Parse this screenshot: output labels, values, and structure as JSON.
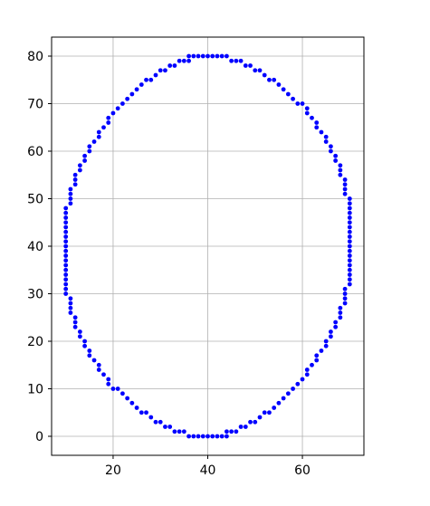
{
  "chart_data": {
    "type": "scatter",
    "title": "",
    "xlabel": "",
    "ylabel": "",
    "xlim": [
      7.0,
      73.0
    ],
    "ylim": [
      -4.0,
      84.0
    ],
    "xticks": [
      20,
      40,
      60
    ],
    "yticks": [
      0,
      10,
      20,
      30,
      40,
      50,
      60,
      70,
      80
    ],
    "grid": true,
    "marker_color": "#0000ff",
    "series": [
      {
        "points": [
          [
            36,
            80
          ],
          [
            37,
            80
          ],
          [
            38,
            80
          ],
          [
            39,
            80
          ],
          [
            40,
            80
          ],
          [
            41,
            80
          ],
          [
            42,
            80
          ],
          [
            43,
            80
          ],
          [
            44,
            80
          ],
          [
            45,
            79
          ],
          [
            46,
            79
          ],
          [
            47,
            79
          ],
          [
            48,
            78
          ],
          [
            49,
            78
          ],
          [
            50,
            77
          ],
          [
            51,
            77
          ],
          [
            52,
            76
          ],
          [
            53,
            75
          ],
          [
            54,
            75
          ],
          [
            55,
            74
          ],
          [
            56,
            73
          ],
          [
            57,
            72
          ],
          [
            58,
            71
          ],
          [
            59,
            70
          ],
          [
            60,
            70
          ],
          [
            61,
            69
          ],
          [
            61,
            68
          ],
          [
            62,
            67
          ],
          [
            63,
            66
          ],
          [
            63,
            65
          ],
          [
            64,
            64
          ],
          [
            65,
            63
          ],
          [
            65,
            62
          ],
          [
            66,
            61
          ],
          [
            66,
            60
          ],
          [
            67,
            59
          ],
          [
            67,
            58
          ],
          [
            68,
            57
          ],
          [
            68,
            56
          ],
          [
            68,
            55
          ],
          [
            69,
            54
          ],
          [
            69,
            53
          ],
          [
            69,
            52
          ],
          [
            69,
            51
          ],
          [
            70,
            50
          ],
          [
            70,
            49
          ],
          [
            70,
            48
          ],
          [
            70,
            47
          ],
          [
            70,
            46
          ],
          [
            70,
            45
          ],
          [
            70,
            44
          ],
          [
            70,
            43
          ],
          [
            70,
            42
          ],
          [
            70,
            41
          ],
          [
            70,
            40
          ],
          [
            70,
            39
          ],
          [
            70,
            38
          ],
          [
            70,
            37
          ],
          [
            70,
            36
          ],
          [
            70,
            35
          ],
          [
            70,
            34
          ],
          [
            70,
            33
          ],
          [
            70,
            32
          ],
          [
            69,
            31
          ],
          [
            69,
            30
          ],
          [
            69,
            29
          ],
          [
            69,
            28
          ],
          [
            68,
            27
          ],
          [
            68,
            26
          ],
          [
            68,
            25
          ],
          [
            67,
            24
          ],
          [
            67,
            23
          ],
          [
            66,
            22
          ],
          [
            66,
            21
          ],
          [
            65,
            20
          ],
          [
            65,
            19
          ],
          [
            64,
            18
          ],
          [
            63,
            17
          ],
          [
            63,
            16
          ],
          [
            62,
            15
          ],
          [
            61,
            14
          ],
          [
            61,
            13
          ],
          [
            60,
            12
          ],
          [
            59,
            11
          ],
          [
            58,
            10
          ],
          [
            57,
            9
          ],
          [
            56,
            8
          ],
          [
            55,
            7
          ],
          [
            54,
            6
          ],
          [
            53,
            5
          ],
          [
            52,
            5
          ],
          [
            51,
            4
          ],
          [
            50,
            3
          ],
          [
            49,
            3
          ],
          [
            48,
            2
          ],
          [
            47,
            2
          ],
          [
            46,
            1
          ],
          [
            45,
            1
          ],
          [
            44,
            1
          ],
          [
            44,
            0
          ],
          [
            43,
            0
          ],
          [
            42,
            0
          ],
          [
            41,
            0
          ],
          [
            40,
            0
          ],
          [
            39,
            0
          ],
          [
            38,
            0
          ],
          [
            37,
            0
          ],
          [
            36,
            0
          ],
          [
            35,
            1
          ],
          [
            34,
            1
          ],
          [
            33,
            1
          ],
          [
            32,
            2
          ],
          [
            31,
            2
          ],
          [
            30,
            3
          ],
          [
            29,
            3
          ],
          [
            28,
            4
          ],
          [
            27,
            5
          ],
          [
            26,
            5
          ],
          [
            25,
            6
          ],
          [
            24,
            7
          ],
          [
            23,
            8
          ],
          [
            22,
            9
          ],
          [
            21,
            10
          ],
          [
            20,
            10
          ],
          [
            19,
            11
          ],
          [
            19,
            12
          ],
          [
            18,
            13
          ],
          [
            17,
            14
          ],
          [
            17,
            15
          ],
          [
            16,
            16
          ],
          [
            15,
            17
          ],
          [
            15,
            18
          ],
          [
            14,
            19
          ],
          [
            14,
            20
          ],
          [
            13,
            21
          ],
          [
            13,
            22
          ],
          [
            12,
            23
          ],
          [
            12,
            24
          ],
          [
            12,
            25
          ],
          [
            11,
            26
          ],
          [
            11,
            27
          ],
          [
            11,
            28
          ],
          [
            11,
            29
          ],
          [
            10,
            30
          ],
          [
            10,
            31
          ],
          [
            10,
            32
          ],
          [
            10,
            33
          ],
          [
            10,
            34
          ],
          [
            10,
            35
          ],
          [
            10,
            36
          ],
          [
            10,
            37
          ],
          [
            10,
            38
          ],
          [
            10,
            39
          ],
          [
            10,
            40
          ],
          [
            10,
            41
          ],
          [
            10,
            42
          ],
          [
            10,
            43
          ],
          [
            10,
            44
          ],
          [
            10,
            45
          ],
          [
            10,
            46
          ],
          [
            10,
            47
          ],
          [
            10,
            48
          ],
          [
            11,
            49
          ],
          [
            11,
            50
          ],
          [
            11,
            51
          ],
          [
            11,
            52
          ],
          [
            12,
            53
          ],
          [
            12,
            54
          ],
          [
            12,
            55
          ],
          [
            13,
            56
          ],
          [
            13,
            57
          ],
          [
            14,
            58
          ],
          [
            14,
            59
          ],
          [
            15,
            60
          ],
          [
            15,
            61
          ],
          [
            16,
            62
          ],
          [
            17,
            63
          ],
          [
            17,
            64
          ],
          [
            18,
            65
          ],
          [
            19,
            66
          ],
          [
            19,
            67
          ],
          [
            20,
            68
          ],
          [
            21,
            69
          ],
          [
            22,
            70
          ],
          [
            23,
            71
          ],
          [
            24,
            72
          ],
          [
            25,
            73
          ],
          [
            26,
            74
          ],
          [
            27,
            75
          ],
          [
            28,
            75
          ],
          [
            29,
            76
          ],
          [
            30,
            77
          ],
          [
            31,
            77
          ],
          [
            32,
            78
          ],
          [
            33,
            78
          ],
          [
            34,
            79
          ],
          [
            35,
            79
          ],
          [
            36,
            79
          ]
        ]
      }
    ]
  }
}
